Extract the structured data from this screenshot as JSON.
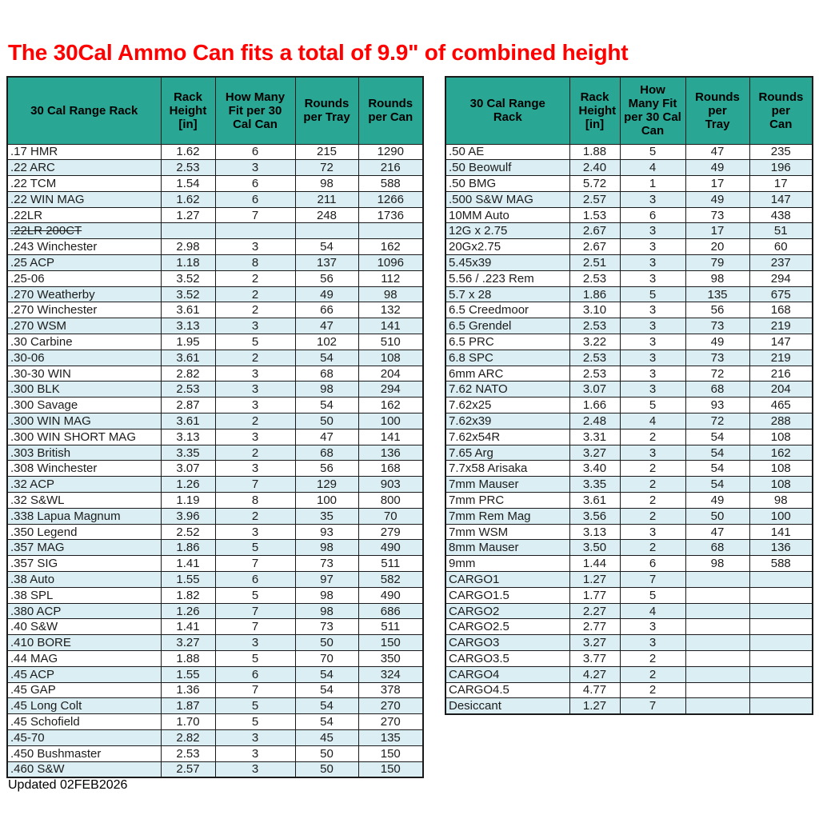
{
  "title": "The 30Cal Ammo Can fits a total of 9.9\" of combined height",
  "footer": "Updated 02FEB2026",
  "colors": {
    "header_bg": "#2AA794",
    "alt_row_bg": "#DAEEF3",
    "title_red": "#FF0000"
  },
  "columns": [
    "30 Cal Range Rack",
    "Rack Height [in]",
    "How Many Fit per 30 Cal Can",
    "Rounds per Tray",
    "Rounds per Can"
  ],
  "left_table": {
    "rows": [
      {
        "c": [
          ".17 HMR",
          "1.62",
          "6",
          "215",
          "1290"
        ]
      },
      {
        "c": [
          ".22 ARC",
          "2.53",
          "3",
          "72",
          "216"
        ]
      },
      {
        "c": [
          ".22 TCM",
          "1.54",
          "6",
          "98",
          "588"
        ]
      },
      {
        "c": [
          ".22 WIN MAG",
          "1.62",
          "6",
          "211",
          "1266"
        ]
      },
      {
        "c": [
          ".22LR",
          "1.27",
          "7",
          "248",
          "1736"
        ]
      },
      {
        "c": [
          ".22LR 200CT",
          "",
          "",
          "",
          ""
        ],
        "strike": true
      },
      {
        "c": [
          ".243 Winchester",
          "2.98",
          "3",
          "54",
          "162"
        ]
      },
      {
        "c": [
          ".25 ACP",
          "1.18",
          "8",
          "137",
          "1096"
        ]
      },
      {
        "c": [
          ".25-06",
          "3.52",
          "2",
          "56",
          "112"
        ]
      },
      {
        "c": [
          ".270 Weatherby",
          "3.52",
          "2",
          "49",
          "98"
        ]
      },
      {
        "c": [
          ".270 Winchester",
          "3.61",
          "2",
          "66",
          "132"
        ]
      },
      {
        "c": [
          ".270 WSM",
          "3.13",
          "3",
          "47",
          "141"
        ]
      },
      {
        "c": [
          ".30 Carbine",
          "1.95",
          "5",
          "102",
          "510"
        ]
      },
      {
        "c": [
          ".30-06",
          "3.61",
          "2",
          "54",
          "108"
        ]
      },
      {
        "c": [
          ".30-30 WIN",
          "2.82",
          "3",
          "68",
          "204"
        ]
      },
      {
        "c": [
          ".300 BLK",
          "2.53",
          "3",
          "98",
          "294"
        ]
      },
      {
        "c": [
          ".300 Savage",
          "2.87",
          "3",
          "54",
          "162"
        ]
      },
      {
        "c": [
          ".300 WIN MAG",
          "3.61",
          "2",
          "50",
          "100"
        ]
      },
      {
        "c": [
          ".300 WIN SHORT MAG",
          "3.13",
          "3",
          "47",
          "141"
        ]
      },
      {
        "c": [
          ".303 British",
          "3.35",
          "2",
          "68",
          "136"
        ]
      },
      {
        "c": [
          ".308 Winchester",
          "3.07",
          "3",
          "56",
          "168"
        ]
      },
      {
        "c": [
          ".32 ACP",
          "1.26",
          "7",
          "129",
          "903"
        ]
      },
      {
        "c": [
          ".32 S&WL",
          "1.19",
          "8",
          "100",
          "800"
        ]
      },
      {
        "c": [
          ".338 Lapua Magnum",
          "3.96",
          "2",
          "35",
          "70"
        ]
      },
      {
        "c": [
          ".350 Legend",
          "2.52",
          "3",
          "93",
          "279"
        ]
      },
      {
        "c": [
          ".357 MAG",
          "1.86",
          "5",
          "98",
          "490"
        ]
      },
      {
        "c": [
          ".357 SIG",
          "1.41",
          "7",
          "73",
          "511"
        ]
      },
      {
        "c": [
          ".38 Auto",
          "1.55",
          "6",
          "97",
          "582"
        ]
      },
      {
        "c": [
          ".38 SPL",
          "1.82",
          "5",
          "98",
          "490"
        ]
      },
      {
        "c": [
          ".380 ACP",
          "1.26",
          "7",
          "98",
          "686"
        ]
      },
      {
        "c": [
          ".40 S&W",
          "1.41",
          "7",
          "73",
          "511"
        ]
      },
      {
        "c": [
          ".410 BORE",
          "3.27",
          "3",
          "50",
          "150"
        ]
      },
      {
        "c": [
          ".44 MAG",
          "1.88",
          "5",
          "70",
          "350"
        ]
      },
      {
        "c": [
          ".45 ACP",
          "1.55",
          "6",
          "54",
          "324"
        ]
      },
      {
        "c": [
          ".45 GAP",
          "1.36",
          "7",
          "54",
          "378"
        ]
      },
      {
        "c": [
          ".45 Long Colt",
          "1.87",
          "5",
          "54",
          "270"
        ]
      },
      {
        "c": [
          ".45 Schofield",
          "1.70",
          "5",
          "54",
          "270"
        ]
      },
      {
        "c": [
          ".45-70",
          "2.82",
          "3",
          "45",
          "135"
        ]
      },
      {
        "c": [
          ".450 Bushmaster",
          "2.53",
          "3",
          "50",
          "150"
        ]
      },
      {
        "c": [
          ".460 S&W",
          "2.57",
          "3",
          "50",
          "150"
        ]
      }
    ]
  },
  "right_table": {
    "rows": [
      {
        "c": [
          ".50 AE",
          "1.88",
          "5",
          "47",
          "235"
        ]
      },
      {
        "c": [
          ".50 Beowulf",
          "2.40",
          "4",
          "49",
          "196"
        ]
      },
      {
        "c": [
          ".50 BMG",
          "5.72",
          "1",
          "17",
          "17"
        ]
      },
      {
        "c": [
          ".500 S&W MAG",
          "2.57",
          "3",
          "49",
          "147"
        ]
      },
      {
        "c": [
          "10MM Auto",
          "1.53",
          "6",
          "73",
          "438"
        ]
      },
      {
        "c": [
          "12G x 2.75",
          "2.67",
          "3",
          "17",
          "51"
        ]
      },
      {
        "c": [
          "20Gx2.75",
          "2.67",
          "3",
          "20",
          "60"
        ]
      },
      {
        "c": [
          "5.45x39",
          "2.51",
          "3",
          "79",
          "237"
        ]
      },
      {
        "c": [
          "5.56 / .223 Rem",
          "2.53",
          "3",
          "98",
          "294"
        ]
      },
      {
        "c": [
          "5.7 x 28",
          "1.86",
          "5",
          "135",
          "675"
        ]
      },
      {
        "c": [
          "6.5 Creedmoor",
          "3.10",
          "3",
          "56",
          "168"
        ]
      },
      {
        "c": [
          "6.5 Grendel",
          "2.53",
          "3",
          "73",
          "219"
        ]
      },
      {
        "c": [
          "6.5 PRC",
          "3.22",
          "3",
          "49",
          "147"
        ]
      },
      {
        "c": [
          "6.8 SPC",
          "2.53",
          "3",
          "73",
          "219"
        ]
      },
      {
        "c": [
          "6mm ARC",
          "2.53",
          "3",
          "72",
          "216"
        ]
      },
      {
        "c": [
          "7.62 NATO",
          "3.07",
          "3",
          "68",
          "204"
        ]
      },
      {
        "c": [
          "7.62x25",
          "1.66",
          "5",
          "93",
          "465"
        ]
      },
      {
        "c": [
          "7.62x39",
          "2.48",
          "4",
          "72",
          "288"
        ]
      },
      {
        "c": [
          "7.62x54R",
          "3.31",
          "2",
          "54",
          "108"
        ]
      },
      {
        "c": [
          "7.65 Arg",
          "3.27",
          "3",
          "54",
          "162"
        ]
      },
      {
        "c": [
          "7.7x58 Arisaka",
          "3.40",
          "2",
          "54",
          "108"
        ]
      },
      {
        "c": [
          "7mm Mauser",
          "3.35",
          "2",
          "54",
          "108"
        ]
      },
      {
        "c": [
          "7mm PRC",
          "3.61",
          "2",
          "49",
          "98"
        ]
      },
      {
        "c": [
          "7mm Rem Mag",
          "3.56",
          "2",
          "50",
          "100"
        ]
      },
      {
        "c": [
          "7mm WSM",
          "3.13",
          "3",
          "47",
          "141"
        ]
      },
      {
        "c": [
          "8mm Mauser",
          "3.50",
          "2",
          "68",
          "136"
        ]
      },
      {
        "c": [
          "9mm",
          "1.44",
          "6",
          "98",
          "588"
        ]
      },
      {
        "c": [
          "CARGO1",
          "1.27",
          "7",
          "",
          ""
        ]
      },
      {
        "c": [
          "CARGO1.5",
          "1.77",
          "5",
          "",
          ""
        ]
      },
      {
        "c": [
          "CARGO2",
          "2.27",
          "4",
          "",
          ""
        ]
      },
      {
        "c": [
          "CARGO2.5",
          "2.77",
          "3",
          "",
          ""
        ]
      },
      {
        "c": [
          "CARGO3",
          "3.27",
          "3",
          "",
          ""
        ]
      },
      {
        "c": [
          "CARGO3.5",
          "3.77",
          "2",
          "",
          ""
        ]
      },
      {
        "c": [
          "CARGO4",
          "4.27",
          "2",
          "",
          ""
        ]
      },
      {
        "c": [
          "CARGO4.5",
          "4.77",
          "2",
          "",
          ""
        ]
      },
      {
        "c": [
          "Desiccant",
          "1.27",
          "7",
          "",
          ""
        ]
      }
    ]
  }
}
